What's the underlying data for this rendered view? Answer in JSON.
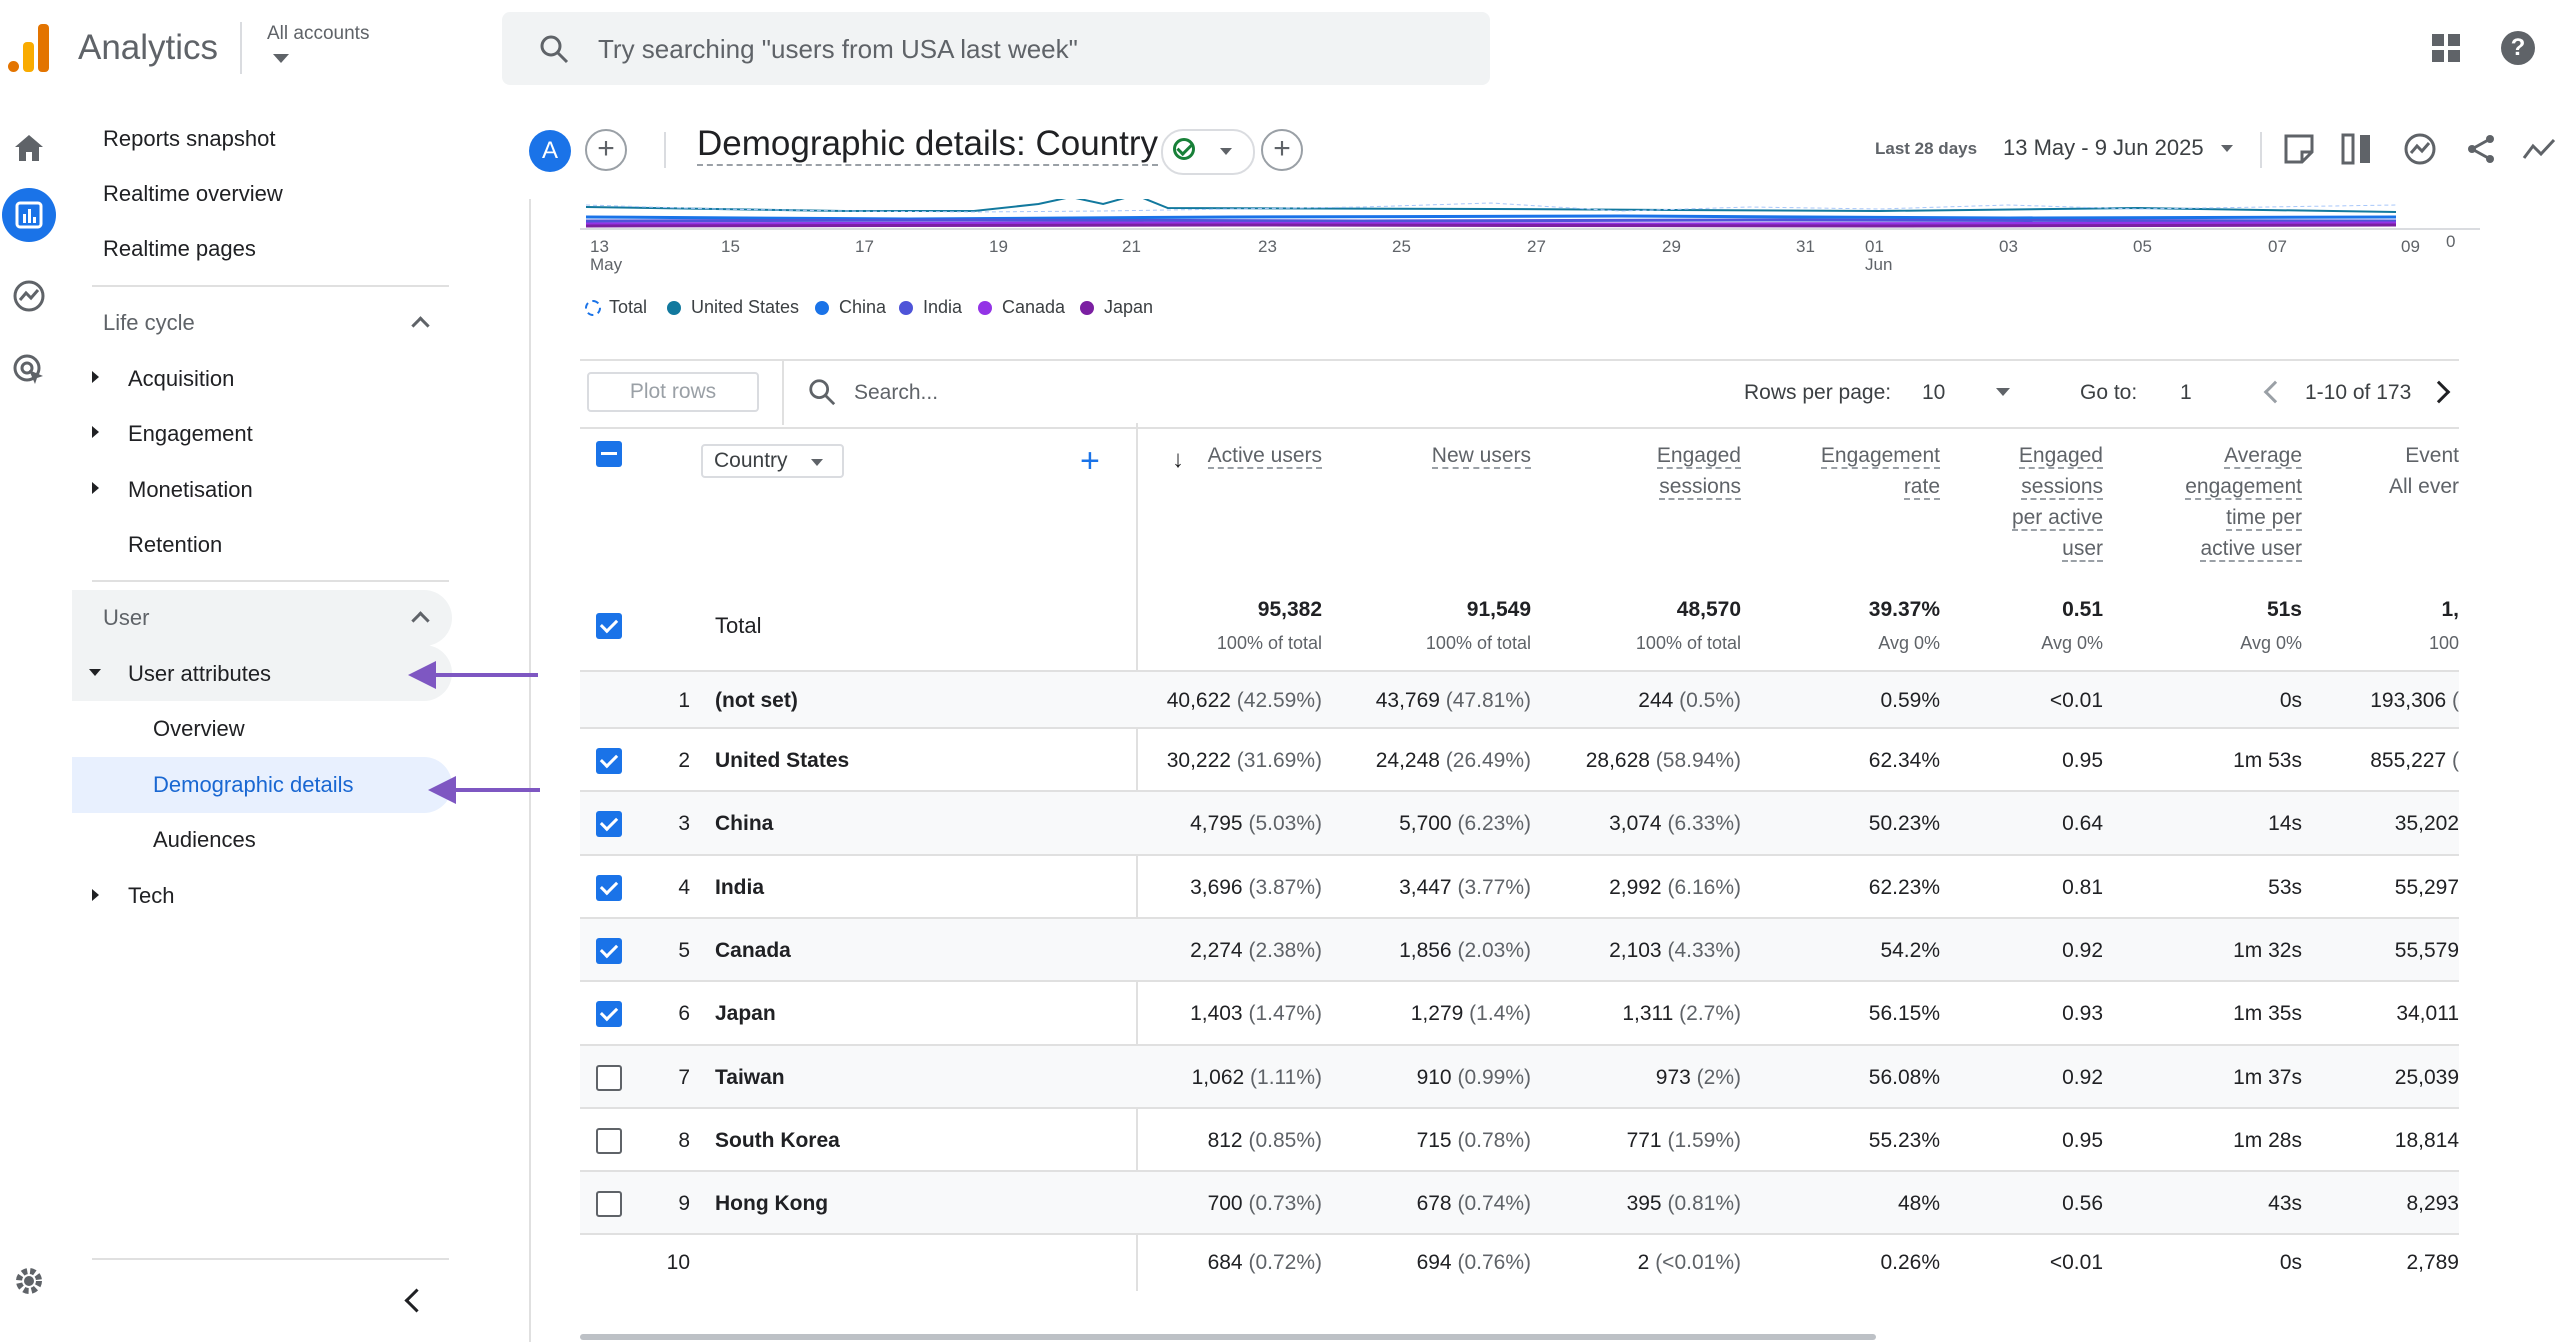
{
  "app": {
    "title": "Analytics",
    "account_label": "All accounts"
  },
  "search": {
    "placeholder": "Try searching \"users from USA last week\""
  },
  "sidebar": {
    "top_items": [
      "Reports snapshot",
      "Realtime overview",
      "Realtime pages"
    ],
    "lifecycle": {
      "label": "Life cycle",
      "items": [
        "Acquisition",
        "Engagement",
        "Monetisation",
        "Retention"
      ]
    },
    "user": {
      "label": "User",
      "attributes": "User attributes",
      "sub_items": [
        "Overview",
        "Demographic details",
        "Audiences"
      ],
      "tech": "Tech"
    }
  },
  "report": {
    "avatar_letter": "A",
    "title": "Demographic details: Country",
    "date_label": "Last 28 days",
    "date_range": "13 May - 9 Jun 2025"
  },
  "chart_data": {
    "type": "line",
    "x_ticks": [
      "13",
      "15",
      "17",
      "19",
      "21",
      "23",
      "25",
      "27",
      "29",
      "31",
      "01",
      "03",
      "05",
      "07",
      "09"
    ],
    "x_month_labels": {
      "13": "May",
      "01": "Jun"
    },
    "y_tick_visible": "0",
    "legend": [
      {
        "name": "Total",
        "color": "#1a73e8",
        "dashed": true
      },
      {
        "name": "United States",
        "color": "#12799e"
      },
      {
        "name": "China",
        "color": "#1a73e8"
      },
      {
        "name": "India",
        "color": "#4e54d8"
      },
      {
        "name": "Canada",
        "color": "#9334e6"
      },
      {
        "name": "Japan",
        "color": "#7b1fa2"
      }
    ]
  },
  "toolbar": {
    "plot_rows": "Plot rows",
    "search_placeholder": "Search...",
    "rows_per_page_label": "Rows per page:",
    "rows_per_page": "10",
    "goto_label": "Go to:",
    "goto_value": "1",
    "page_range": "1-10 of 173"
  },
  "table": {
    "dimension": "Country",
    "columns": [
      {
        "lines": [
          "Active users"
        ],
        "sorted": true
      },
      {
        "lines": [
          "New users"
        ]
      },
      {
        "lines": [
          "Engaged",
          "sessions"
        ]
      },
      {
        "lines": [
          "Engagement",
          "rate"
        ]
      },
      {
        "lines": [
          "Engaged",
          "sessions",
          "per active",
          "user"
        ]
      },
      {
        "lines": [
          "Average",
          "engagement",
          "time per",
          "active user"
        ]
      },
      {
        "lines": [
          "Event",
          "All ever"
        ]
      }
    ],
    "total": {
      "label": "Total",
      "values": [
        "95,382",
        "91,549",
        "48,570",
        "39.37%",
        "0.51",
        "51s",
        "1,"
      ],
      "subs": [
        "100% of total",
        "100% of total",
        "100% of total",
        "Avg 0%",
        "Avg 0%",
        "Avg 0%",
        "100"
      ]
    },
    "rows": [
      {
        "n": "1",
        "name": "(not set)",
        "checked": null,
        "v": [
          [
            "40,622",
            "(42.59%)"
          ],
          [
            "43,769",
            "(47.81%)"
          ],
          [
            "244",
            "(0.5%)"
          ],
          [
            "0.59%",
            ""
          ],
          [
            "<0.01",
            ""
          ],
          [
            "0s",
            ""
          ],
          [
            "193,306",
            "("
          ]
        ]
      },
      {
        "n": "2",
        "name": "United States",
        "checked": true,
        "v": [
          [
            "30,222",
            "(31.69%)"
          ],
          [
            "24,248",
            "(26.49%)"
          ],
          [
            "28,628",
            "(58.94%)"
          ],
          [
            "62.34%",
            ""
          ],
          [
            "0.95",
            ""
          ],
          [
            "1m 53s",
            ""
          ],
          [
            "855,227",
            "("
          ]
        ]
      },
      {
        "n": "3",
        "name": "China",
        "checked": true,
        "v": [
          [
            "4,795",
            "(5.03%)"
          ],
          [
            "5,700",
            "(6.23%)"
          ],
          [
            "3,074",
            "(6.33%)"
          ],
          [
            "50.23%",
            ""
          ],
          [
            "0.64",
            ""
          ],
          [
            "14s",
            ""
          ],
          [
            "35,202",
            ""
          ]
        ]
      },
      {
        "n": "4",
        "name": "India",
        "checked": true,
        "v": [
          [
            "3,696",
            "(3.87%)"
          ],
          [
            "3,447",
            "(3.77%)"
          ],
          [
            "2,992",
            "(6.16%)"
          ],
          [
            "62.23%",
            ""
          ],
          [
            "0.81",
            ""
          ],
          [
            "53s",
            ""
          ],
          [
            "55,297",
            ""
          ]
        ]
      },
      {
        "n": "5",
        "name": "Canada",
        "checked": true,
        "v": [
          [
            "2,274",
            "(2.38%)"
          ],
          [
            "1,856",
            "(2.03%)"
          ],
          [
            "2,103",
            "(4.33%)"
          ],
          [
            "54.2%",
            ""
          ],
          [
            "0.92",
            ""
          ],
          [
            "1m 32s",
            ""
          ],
          [
            "55,579",
            ""
          ]
        ]
      },
      {
        "n": "6",
        "name": "Japan",
        "checked": true,
        "v": [
          [
            "1,403",
            "(1.47%)"
          ],
          [
            "1,279",
            "(1.4%)"
          ],
          [
            "1,311",
            "(2.7%)"
          ],
          [
            "56.15%",
            ""
          ],
          [
            "0.93",
            ""
          ],
          [
            "1m 35s",
            ""
          ],
          [
            "34,011",
            ""
          ]
        ]
      },
      {
        "n": "7",
        "name": "Taiwan",
        "checked": false,
        "v": [
          [
            "1,062",
            "(1.11%)"
          ],
          [
            "910",
            "(0.99%)"
          ],
          [
            "973",
            "(2%)"
          ],
          [
            "56.08%",
            ""
          ],
          [
            "0.92",
            ""
          ],
          [
            "1m 37s",
            ""
          ],
          [
            "25,039",
            ""
          ]
        ]
      },
      {
        "n": "8",
        "name": "South Korea",
        "checked": false,
        "v": [
          [
            "812",
            "(0.85%)"
          ],
          [
            "715",
            "(0.78%)"
          ],
          [
            "771",
            "(1.59%)"
          ],
          [
            "55.23%",
            ""
          ],
          [
            "0.95",
            ""
          ],
          [
            "1m 28s",
            ""
          ],
          [
            "18,814",
            ""
          ]
        ]
      },
      {
        "n": "9",
        "name": "Hong Kong",
        "checked": false,
        "v": [
          [
            "700",
            "(0.73%)"
          ],
          [
            "678",
            "(0.74%)"
          ],
          [
            "395",
            "(0.81%)"
          ],
          [
            "48%",
            ""
          ],
          [
            "0.56",
            ""
          ],
          [
            "43s",
            ""
          ],
          [
            "8,293",
            ""
          ]
        ]
      },
      {
        "n": "10",
        "name": "",
        "checked": null,
        "v": [
          [
            "684",
            "(0.72%)"
          ],
          [
            "694",
            "(0.76%)"
          ],
          [
            "2",
            "(<0.01%)"
          ],
          [
            "0.26%",
            ""
          ],
          [
            "<0.01",
            ""
          ],
          [
            "0s",
            ""
          ],
          [
            "2,789",
            ""
          ]
        ]
      }
    ]
  }
}
